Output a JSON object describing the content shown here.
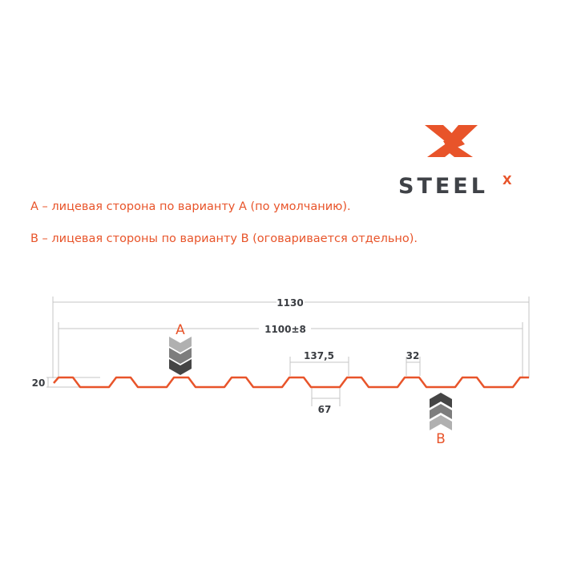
{
  "logo": {
    "text": "STEEL",
    "superscript": "X"
  },
  "notes": [
    "A – лицевая сторона по варианту А (по умолчанию).",
    "B – лицевая стороны по варианту В (оговаривается отдельно)."
  ],
  "dimensions": {
    "total_width": "1130",
    "useful_width": "1100±8",
    "pitch": "137,5",
    "valley_width": "67",
    "crest_width": "32",
    "height": "20"
  },
  "side_labels": {
    "a": "A",
    "b": "B"
  },
  "colors": {
    "accent": "#e8542a",
    "text": "#3a3d42",
    "dim_line": "#bdbdbd"
  }
}
